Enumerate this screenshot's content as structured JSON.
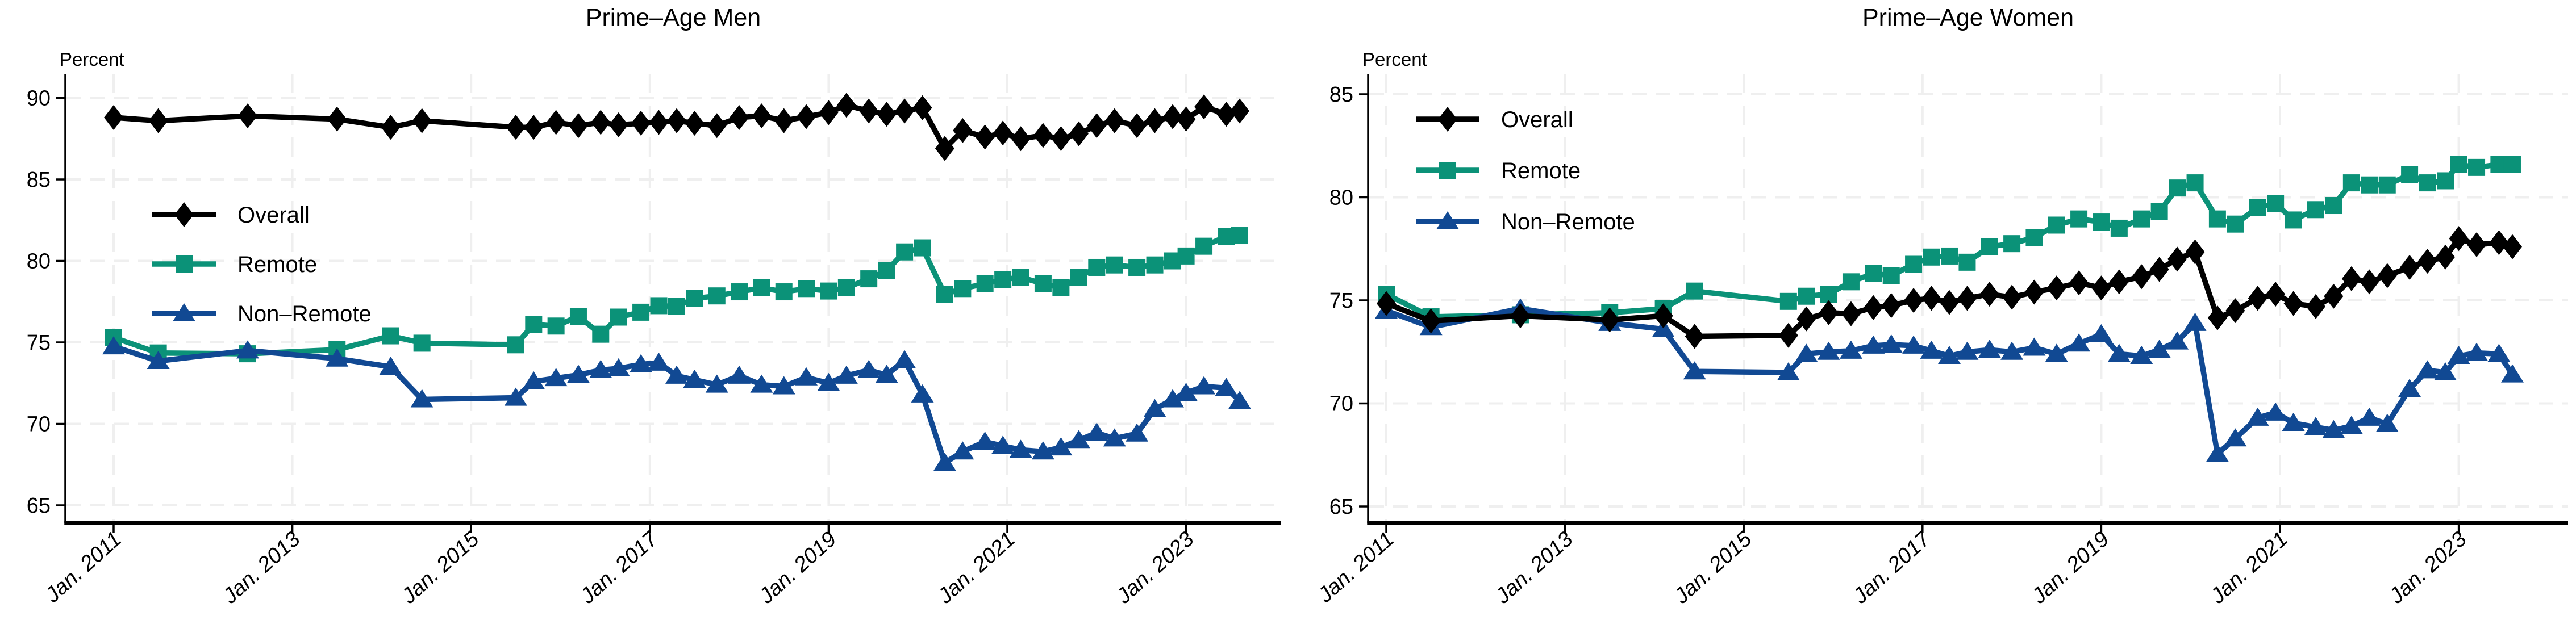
{
  "figure": {
    "unit_label": "Percent",
    "legend_entries": [
      "Overall",
      "Remote",
      "Non–Remote"
    ],
    "colors": {
      "overall": "#000000",
      "remote": "#0b9278",
      "non_remote": "#114993",
      "gridline": "#efefef",
      "axis": "#000000"
    }
  },
  "chart_data": [
    {
      "type": "line",
      "title": "Prime–Age Men",
      "ylabel": "Percent",
      "xlabel": "",
      "ylim": [
        63.5,
        91.5
      ],
      "yticks": [
        65,
        70,
        75,
        80,
        85,
        90
      ],
      "xticks": [
        2011,
        2013,
        2015,
        2017,
        2019,
        2021,
        2023
      ],
      "xtick_labels": [
        "Jan. 2011",
        "Jan. 2013",
        "Jan. 2015",
        "Jan. 2017",
        "Jan. 2019",
        "Jan. 2021",
        "Jan. 2023"
      ],
      "grid": true,
      "legend_position": "inside-left",
      "x": [
        2011.0,
        2011.5,
        2012.5,
        2013.5,
        2014.1,
        2014.45,
        2015.5,
        2015.7,
        2015.95,
        2016.2,
        2016.45,
        2016.65,
        2016.9,
        2017.1,
        2017.3,
        2017.5,
        2017.75,
        2018.0,
        2018.25,
        2018.5,
        2018.75,
        2019.0,
        2019.2,
        2019.45,
        2019.65,
        2019.85,
        2020.05,
        2020.3,
        2020.5,
        2020.75,
        2020.95,
        2021.15,
        2021.4,
        2021.6,
        2021.8,
        2022.0,
        2022.2,
        2022.45,
        2022.65,
        2022.85,
        2023.0,
        2023.2,
        2023.45,
        2023.6
      ],
      "series": [
        {
          "name": "Remote",
          "legend_label": "Remote",
          "marker": "square",
          "color": "#0b9278",
          "values": [
            75.3,
            74.35,
            74.3,
            74.55,
            75.4,
            74.95,
            74.85,
            76.1,
            76.0,
            76.6,
            75.5,
            76.55,
            76.85,
            77.25,
            77.2,
            77.7,
            77.85,
            78.1,
            78.35,
            78.1,
            78.3,
            78.15,
            78.35,
            78.9,
            79.4,
            80.55,
            80.8,
            77.95,
            78.3,
            78.6,
            78.85,
            79.0,
            78.6,
            78.35,
            79.0,
            79.6,
            79.75,
            79.6,
            79.75,
            80.0,
            80.3,
            80.9,
            81.5,
            81.55
          ]
        },
        {
          "name": "Non-Remote",
          "legend_label": "Non–Remote",
          "marker": "triangle",
          "color": "#114993",
          "values": [
            74.75,
            73.85,
            74.5,
            74.0,
            73.5,
            71.5,
            71.6,
            72.6,
            72.8,
            73.0,
            73.3,
            73.4,
            73.65,
            73.75,
            72.95,
            72.7,
            72.4,
            72.95,
            72.4,
            72.3,
            72.85,
            72.5,
            72.95,
            73.3,
            73.0,
            73.9,
            71.8,
            67.6,
            68.3,
            68.9,
            68.65,
            68.4,
            68.3,
            68.55,
            69.0,
            69.45,
            69.1,
            69.4,
            70.9,
            71.5,
            71.9,
            72.3,
            72.2,
            71.4
          ]
        },
        {
          "name": "Overall",
          "legend_label": "Overall",
          "marker": "diamond",
          "color": "#000000",
          "values": [
            88.8,
            88.6,
            88.9,
            88.7,
            88.2,
            88.6,
            88.2,
            88.2,
            88.5,
            88.3,
            88.5,
            88.35,
            88.45,
            88.5,
            88.6,
            88.45,
            88.3,
            88.8,
            88.9,
            88.6,
            88.85,
            89.1,
            89.55,
            89.2,
            89.0,
            89.2,
            89.4,
            86.9,
            88.0,
            87.6,
            87.85,
            87.5,
            87.7,
            87.5,
            87.8,
            88.3,
            88.6,
            88.3,
            88.6,
            88.85,
            88.7,
            89.45,
            89.0,
            89.2
          ]
        }
      ]
    },
    {
      "type": "line",
      "title": "Prime–Age Women",
      "ylabel": "Percent",
      "xlabel": "",
      "ylim": [
        62.5,
        86.5
      ],
      "yticks": [
        65,
        70,
        75,
        80,
        85
      ],
      "xticks": [
        2011,
        2013,
        2015,
        2017,
        2019,
        2021,
        2023
      ],
      "xtick_labels": [
        "Jan. 2011",
        "Jan. 2013",
        "Jan. 2015",
        "Jan. 2017",
        "Jan. 2019",
        "Jan. 2021",
        "Jan. 2023"
      ],
      "grid": true,
      "legend_position": "inside-left-top",
      "x": [
        2011.0,
        2011.5,
        2012.5,
        2013.5,
        2014.1,
        2014.45,
        2015.5,
        2015.7,
        2015.95,
        2016.2,
        2016.45,
        2016.65,
        2016.9,
        2017.1,
        2017.3,
        2017.5,
        2017.75,
        2018.0,
        2018.25,
        2018.5,
        2018.75,
        2019.0,
        2019.2,
        2019.45,
        2019.65,
        2019.85,
        2020.05,
        2020.3,
        2020.5,
        2020.75,
        2020.95,
        2021.15,
        2021.4,
        2021.6,
        2021.8,
        2022.0,
        2022.2,
        2022.45,
        2022.65,
        2022.85,
        2023.0,
        2023.2,
        2023.45,
        2023.6
      ],
      "series": [
        {
          "name": "Remote",
          "legend_label": "Remote",
          "marker": "square",
          "color": "#0b9278",
          "values": [
            75.3,
            74.2,
            74.3,
            74.4,
            74.6,
            75.45,
            74.95,
            75.2,
            75.3,
            75.9,
            76.3,
            76.2,
            76.75,
            77.1,
            77.15,
            76.85,
            77.6,
            77.75,
            78.05,
            78.65,
            78.95,
            78.8,
            78.5,
            78.95,
            79.3,
            80.45,
            80.7,
            78.95,
            78.7,
            79.5,
            79.7,
            78.9,
            79.4,
            79.6,
            80.7,
            80.6,
            80.6,
            81.1,
            80.7,
            80.8,
            81.6,
            81.45,
            81.6,
            81.6
          ]
        },
        {
          "name": "Non-Remote",
          "legend_label": "Non–Remote",
          "marker": "triangle",
          "color": "#114993",
          "values": [
            74.5,
            73.7,
            74.6,
            73.9,
            73.6,
            71.55,
            71.5,
            72.4,
            72.5,
            72.55,
            72.8,
            72.85,
            72.8,
            72.55,
            72.3,
            72.5,
            72.6,
            72.5,
            72.7,
            72.4,
            72.9,
            73.35,
            72.4,
            72.3,
            72.6,
            73.0,
            73.9,
            67.55,
            68.3,
            69.3,
            69.55,
            69.05,
            68.85,
            68.7,
            68.9,
            69.3,
            69.0,
            70.7,
            71.6,
            71.5,
            72.3,
            72.45,
            72.4,
            71.4
          ]
        },
        {
          "name": "Overall",
          "legend_label": "Overall",
          "marker": "diamond",
          "color": "#000000",
          "values": [
            74.85,
            74.0,
            74.25,
            74.05,
            74.25,
            73.25,
            73.3,
            74.1,
            74.4,
            74.35,
            74.65,
            74.75,
            75.0,
            75.1,
            74.9,
            75.1,
            75.3,
            75.15,
            75.4,
            75.6,
            75.85,
            75.6,
            75.9,
            76.15,
            76.5,
            77.0,
            77.35,
            74.15,
            74.5,
            75.1,
            75.3,
            74.85,
            74.7,
            75.2,
            76.05,
            75.9,
            76.2,
            76.6,
            76.9,
            77.1,
            78.0,
            77.7,
            77.8,
            77.6
          ]
        }
      ]
    }
  ]
}
